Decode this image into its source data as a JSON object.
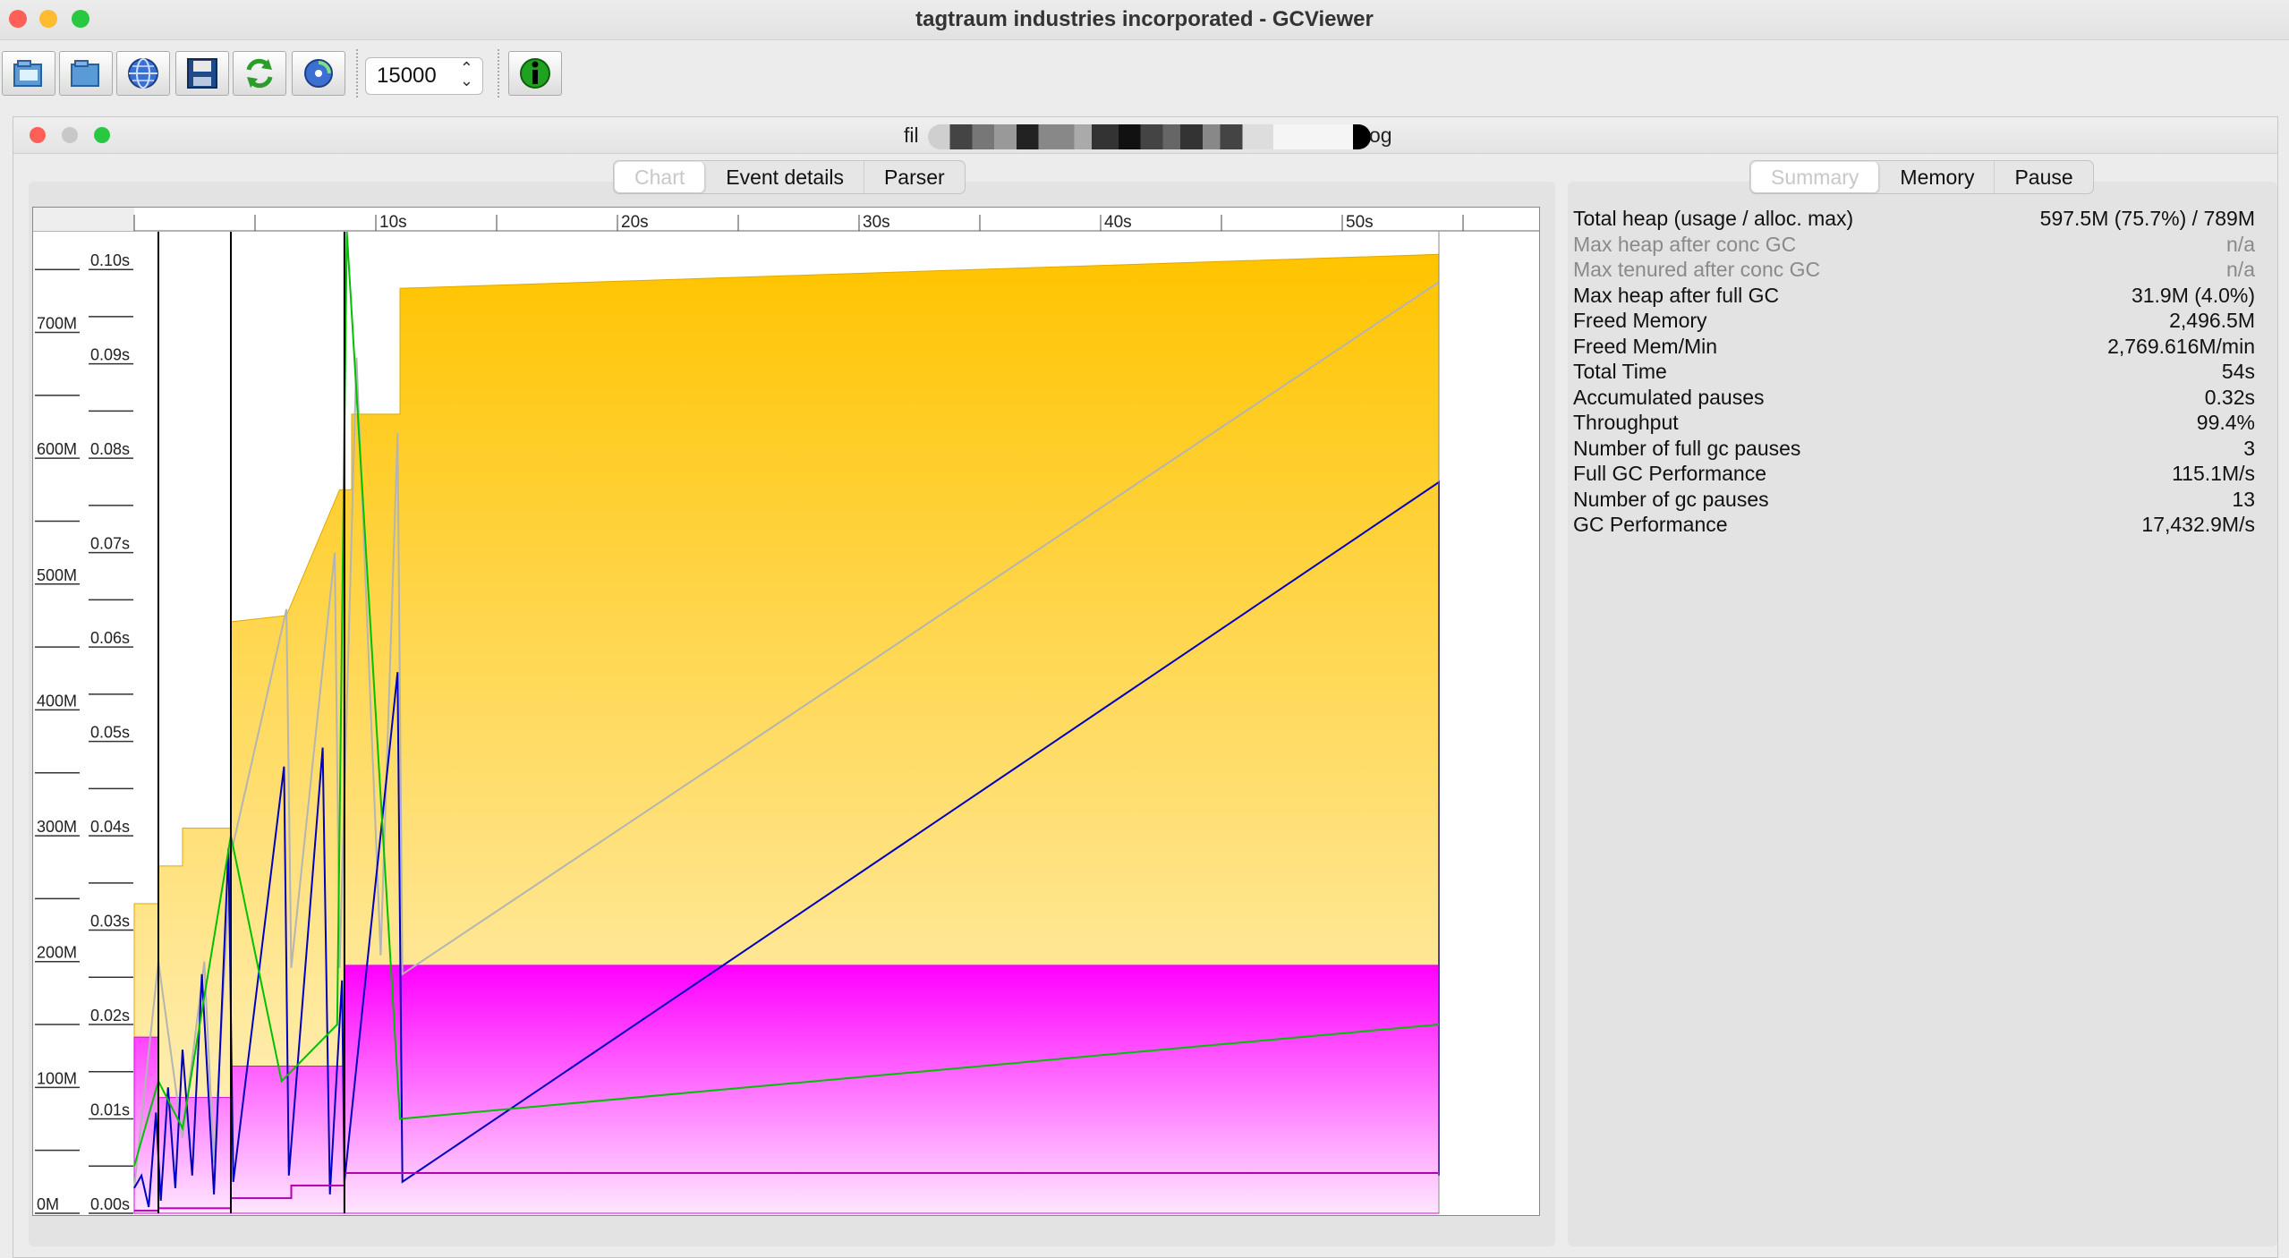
{
  "app": {
    "title": "tagtraum industries incorporated - GCViewer"
  },
  "toolbar": {
    "icons": [
      "open-file-icon",
      "open-folder-icon",
      "open-url-icon",
      "save-icon",
      "refresh-icon",
      "watch-icon",
      "info-icon"
    ],
    "spinner_value": "15000"
  },
  "document": {
    "title_prefix": "fil",
    "title_suffix": "og"
  },
  "left_tabs": [
    "Chart",
    "Event details",
    "Parser"
  ],
  "right_tabs": [
    "Summary",
    "Memory",
    "Pause"
  ],
  "summary": [
    {
      "label": "Total heap (usage / alloc. max)",
      "value": "597.5M (75.7%) / 789M",
      "dim": false
    },
    {
      "label": "Max heap after conc GC",
      "value": "n/a",
      "dim": true
    },
    {
      "label": "Max tenured after conc GC",
      "value": "n/a",
      "dim": true
    },
    {
      "label": "Max heap after full GC",
      "value": "31.9M (4.0%)",
      "dim": false
    },
    {
      "label": "Freed Memory",
      "value": "2,496.5M",
      "dim": false
    },
    {
      "label": "Freed Mem/Min",
      "value": "2,769.616M/min",
      "dim": false
    },
    {
      "label": "Total Time",
      "value": "54s",
      "dim": false
    },
    {
      "label": "Accumulated pauses",
      "value": "0.32s",
      "dim": false
    },
    {
      "label": "Throughput",
      "value": "99.4%",
      "dim": false
    },
    {
      "label": "Number of full gc pauses",
      "value": "3",
      "dim": false
    },
    {
      "label": "Full GC Performance",
      "value": "115.1M/s",
      "dim": false
    },
    {
      "label": "Number of gc pauses",
      "value": "13",
      "dim": false
    },
    {
      "label": "GC Performance",
      "value": "17,432.9M/s",
      "dim": false
    }
  ],
  "chart_data": {
    "type": "area",
    "x_ticks": [
      "10s",
      "20s",
      "30s",
      "40s",
      "50s"
    ],
    "x_values": [
      10,
      20,
      30,
      40,
      50
    ],
    "xlim": [
      0,
      57
    ],
    "mem_ticks": [
      "0M",
      "100M",
      "200M",
      "300M",
      "400M",
      "500M",
      "600M",
      "700M"
    ],
    "mem_values": [
      0,
      100,
      200,
      300,
      400,
      500,
      600,
      700
    ],
    "mem_lim": [
      0,
      780
    ],
    "pause_ticks": [
      "0.00s",
      "0.01s",
      "0.02s",
      "0.03s",
      "0.04s",
      "0.05s",
      "0.06s",
      "0.07s",
      "0.08s",
      "0.09s",
      "0.10s"
    ],
    "pause_values": [
      0,
      0.01,
      0.02,
      0.03,
      0.04,
      0.05,
      0.06,
      0.07,
      0.08,
      0.09,
      0.1
    ],
    "pause_lim": [
      0,
      0.104
    ],
    "colors": {
      "total_heap": "#ffc107",
      "tenured": "#ff00ff",
      "used_heap": "#0000c0",
      "young": "#b4b4b4",
      "full_gc": "#000000",
      "gc_line": "#00c000",
      "tenured_line": "#b000b0"
    },
    "total_heap": [
      [
        0,
        0
      ],
      [
        0,
        246
      ],
      [
        1,
        246
      ],
      [
        1,
        276
      ],
      [
        2,
        276
      ],
      [
        2,
        306
      ],
      [
        4,
        306
      ],
      [
        4,
        470
      ],
      [
        6.3,
        475
      ],
      [
        8.5,
        575
      ],
      [
        9,
        575
      ],
      [
        9,
        635
      ],
      [
        11,
        635
      ],
      [
        11,
        735
      ],
      [
        54,
        762
      ]
    ],
    "tenured": [
      [
        0,
        0
      ],
      [
        0,
        140
      ],
      [
        1,
        140
      ],
      [
        1,
        92
      ],
      [
        4,
        92
      ],
      [
        4,
        117
      ],
      [
        6.5,
        117
      ],
      [
        6.5,
        117
      ],
      [
        8.7,
        117
      ],
      [
        8.7,
        197
      ],
      [
        54,
        197
      ]
    ],
    "used_heap": [
      [
        0,
        20
      ],
      [
        0.3,
        30
      ],
      [
        0.6,
        5
      ],
      [
        0.9,
        80
      ],
      [
        1.1,
        10
      ],
      [
        1.4,
        100
      ],
      [
        1.7,
        20
      ],
      [
        2,
        130
      ],
      [
        2.4,
        30
      ],
      [
        2.8,
        190
      ],
      [
        3.3,
        15
      ],
      [
        3.9,
        290
      ],
      [
        4.1,
        25
      ],
      [
        6.2,
        355
      ],
      [
        6.4,
        30
      ],
      [
        7.8,
        370
      ],
      [
        8.1,
        15
      ],
      [
        8.6,
        185
      ],
      [
        8.7,
        25
      ],
      [
        10.9,
        430
      ],
      [
        11.1,
        25
      ],
      [
        54,
        581
      ],
      [
        54,
        30
      ]
    ],
    "young": [
      [
        0,
        20
      ],
      [
        1,
        200
      ],
      [
        2,
        60
      ],
      [
        2.9,
        200
      ],
      [
        3.3,
        40
      ],
      [
        4,
        285
      ],
      [
        6.3,
        480
      ],
      [
        6.5,
        195
      ],
      [
        8.3,
        525
      ],
      [
        8.5,
        195
      ],
      [
        9.2,
        680
      ],
      [
        10.2,
        205
      ],
      [
        10.9,
        620
      ],
      [
        11.1,
        190
      ],
      [
        54,
        740
      ]
    ],
    "gc_pause": [
      [
        0,
        0.005
      ],
      [
        1,
        0.014
      ],
      [
        2,
        0.009
      ],
      [
        4,
        0.04
      ],
      [
        6.1,
        0.014
      ],
      [
        8.4,
        0.02
      ],
      [
        8.8,
        0.104
      ],
      [
        11,
        0.01
      ],
      [
        54,
        0.02
      ]
    ],
    "tenured_line": [
      [
        0,
        2
      ],
      [
        1,
        2
      ],
      [
        1,
        4
      ],
      [
        4,
        4
      ],
      [
        4,
        12
      ],
      [
        6.5,
        12
      ],
      [
        6.5,
        22
      ],
      [
        8.7,
        22
      ],
      [
        8.7,
        32
      ],
      [
        54,
        32
      ]
    ],
    "full_gc_times": [
      1,
      4,
      8.7
    ]
  }
}
